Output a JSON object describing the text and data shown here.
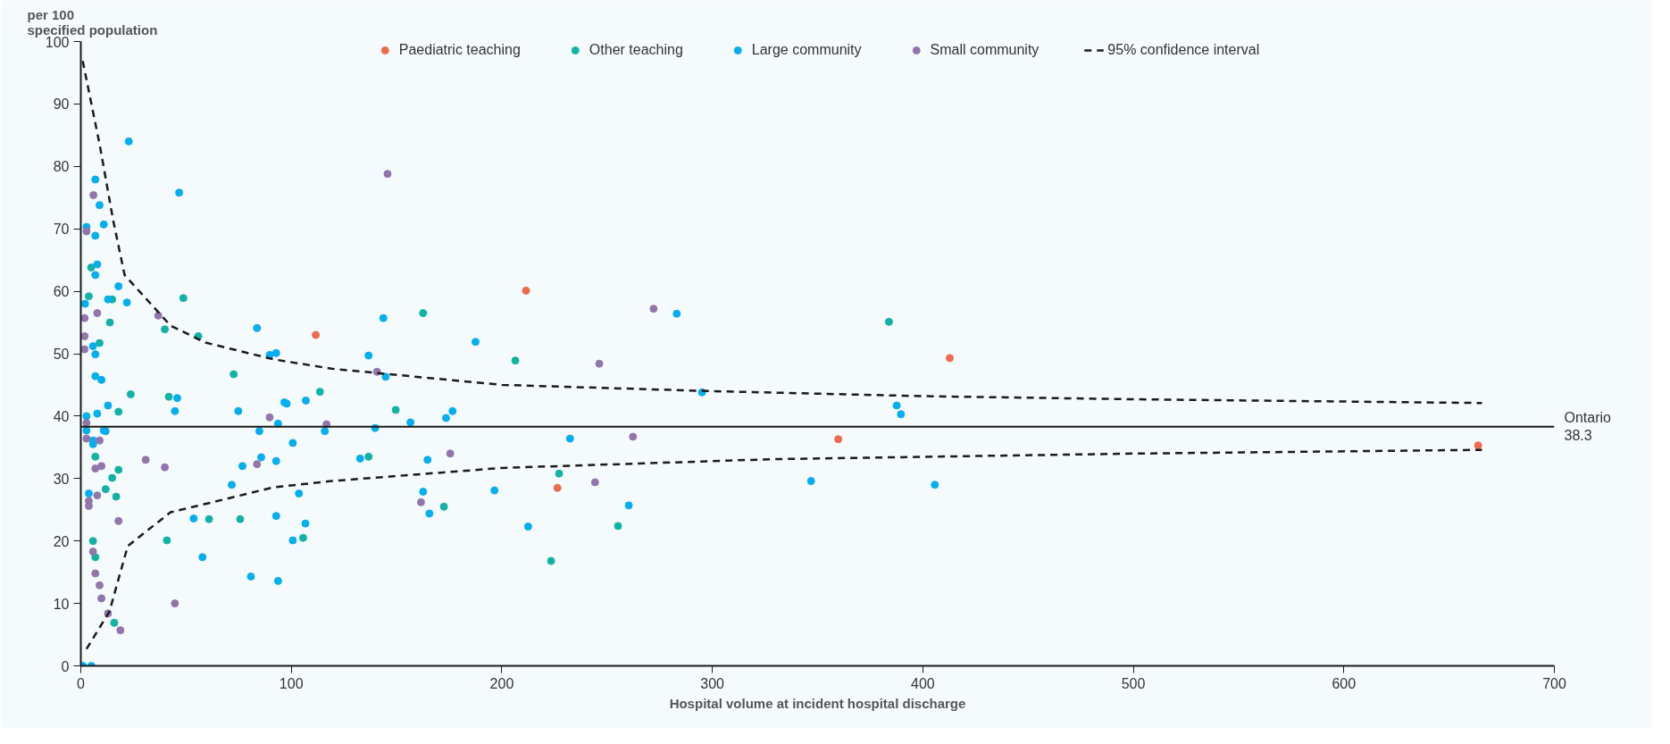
{
  "chart_data": {
    "type": "scatter",
    "xlabel": "Hospital volume at incident hospital discharge",
    "ylabel": "per 100\nspecified population",
    "xlim": [
      0,
      700
    ],
    "xticks": [
      0,
      100,
      200,
      300,
      400,
      500,
      600,
      700
    ],
    "ylim": [
      0,
      100
    ],
    "yticks": [
      0,
      10,
      20,
      30,
      40,
      50,
      60,
      70,
      80,
      90,
      100
    ],
    "grid": false,
    "legend": "top",
    "marker": "circle",
    "ref_lines": [
      {
        "axis": "y",
        "value": 38.3,
        "label": "Ontario\n38.3",
        "color": "#1a1a1a",
        "line_style": "solid"
      }
    ],
    "series": [
      {
        "name": "Paediatric teaching",
        "color": "#ee6a4d",
        "x": [
          111.6,
          211.5,
          226.4,
          359.8,
          412.8,
          663.8
        ],
        "values": [
          53.0,
          60.1,
          28.5,
          36.3,
          49.3,
          35.3
        ]
      },
      {
        "name": "Other teaching",
        "color": "#12b3a4",
        "x": [
          4.9,
          3.8,
          14.9,
          48.7,
          13.8,
          39.9,
          55.8,
          8.9,
          72.6,
          23.7,
          41.8,
          17.9,
          113.6,
          6.9,
          17.9,
          14.9,
          11.8,
          16.8,
          60.9,
          75.7,
          5.8,
          40.9,
          105.6,
          6.9,
          15.9,
          162.6,
          206.4,
          149.6,
          136.7,
          227.2,
          172.5,
          255.2,
          223.4,
          383.9
        ],
        "values": [
          63.8,
          59.2,
          58.7,
          58.9,
          55.0,
          53.9,
          52.8,
          51.7,
          46.7,
          43.5,
          43.1,
          40.7,
          43.9,
          33.5,
          31.4,
          30.1,
          28.3,
          27.1,
          23.5,
          23.5,
          20.0,
          20.1,
          20.5,
          17.4,
          6.9,
          56.5,
          48.9,
          41.0,
          33.5,
          30.8,
          25.5,
          22.4,
          16.8,
          55.1
        ]
      },
      {
        "name": "Large community",
        "color": "#04aeef",
        "x": [
          22.8,
          6.9,
          8.9,
          10.9,
          2.7,
          6.9,
          46.7,
          7.8,
          6.9,
          17.9,
          12.9,
          2.0,
          21.9,
          83.7,
          5.8,
          6.9,
          6.9,
          9.8,
          89.7,
          92.8,
          45.8,
          12.9,
          44.7,
          74.8,
          96.7,
          97.8,
          106.9,
          2.7,
          7.8,
          93.7,
          2.7,
          10.9,
          11.8,
          5.8,
          5.8,
          84.8,
          100.7,
          76.8,
          85.7,
          92.8,
          71.7,
          3.8,
          103.6,
          53.6,
          92.8,
          106.7,
          100.7,
          57.8,
          80.8,
          93.7,
          1,
          5,
          283.1,
          143.7,
          187.5,
          136.7,
          144.8,
          295.1,
          176.6,
          173.5,
          156.6,
          139.8,
          115.9,
          232.4,
          132.7,
          164.7,
          162.6,
          165.6,
          196.5,
          260.3,
          212.5,
          387.6,
          389.6,
          346.9,
          405.7
        ],
        "values": [
          84.0,
          77.9,
          73.8,
          70.7,
          70.3,
          68.9,
          75.8,
          64.3,
          62.6,
          60.8,
          58.7,
          58.0,
          58.2,
          54.1,
          51.2,
          49.9,
          46.4,
          45.8,
          49.8,
          50.1,
          42.9,
          41.7,
          40.8,
          40.8,
          42.2,
          42.0,
          42.5,
          40.0,
          40.4,
          38.8,
          37.7,
          37.7,
          37.6,
          36.1,
          35.5,
          37.6,
          35.7,
          32.0,
          33.4,
          32.8,
          29.0,
          27.6,
          27.6,
          23.6,
          24.0,
          22.8,
          20.1,
          17.4,
          14.3,
          13.6,
          0,
          0,
          56.4,
          55.7,
          51.9,
          49.7,
          46.3,
          43.8,
          40.8,
          39.7,
          39.0,
          38.1,
          37.6,
          36.4,
          33.2,
          33.0,
          27.9,
          24.4,
          28.1,
          25.7,
          22.3,
          41.7,
          40.3,
          29.6,
          29.0
        ]
      },
      {
        "name": "Small community",
        "color": "#9276ab",
        "x": [
          6.0,
          2.7,
          7.8,
          36.8,
          1.8,
          1.8,
          1.8,
          2.7,
          89.7,
          2.7,
          8.9,
          30.8,
          39.9,
          6.9,
          9.8,
          83.7,
          7.8,
          3.8,
          3.8,
          17.9,
          5.8,
          6.9,
          8.9,
          9.8,
          44.7,
          12.9,
          18.8,
          145.7,
          272.1,
          246.3,
          140.7,
          116.7,
          262.3,
          175.5,
          244.3,
          161.6
        ],
        "values": [
          75.4,
          69.6,
          56.5,
          56.1,
          55.7,
          52.8,
          50.7,
          38.9,
          39.8,
          36.4,
          36.1,
          33.0,
          31.8,
          31.6,
          32.0,
          32.3,
          27.3,
          26.4,
          25.6,
          23.2,
          18.3,
          14.8,
          12.9,
          10.8,
          10.0,
          8.4,
          5.7,
          78.8,
          57.2,
          48.4,
          47.1,
          38.7,
          36.7,
          34.0,
          29.4,
          26.2
        ]
      },
      {
        "name": "95% confidence interval",
        "type": "line",
        "line_style": "dashed",
        "marker": "none",
        "color": "#1a1a1a",
        "x": [
          0.9,
          9,
          15.4,
          20.8,
          42.6,
          59,
          91.5,
          119,
          200,
          300,
          400,
          500,
          665.6
        ],
        "values": [
          96.9,
          83.4,
          71.3,
          62.6,
          54.5,
          51.8,
          49.1,
          47.6,
          45.0,
          44.0,
          43.2,
          42.7,
          42.1
        ]
      },
      {
        "type": "line",
        "line_style": "dashed",
        "marker": "none",
        "color": "#1a1a1a",
        "x": [
          2.7,
          13.6,
          22.3,
          42.6,
          62.5,
          91.5,
          119,
          200,
          328.4,
          500,
          665.6
        ],
        "values": [
          2.7,
          8.7,
          19.2,
          24.6,
          26.2,
          28.6,
          29.6,
          31.7,
          33.1,
          34.0,
          34.6
        ]
      }
    ]
  }
}
